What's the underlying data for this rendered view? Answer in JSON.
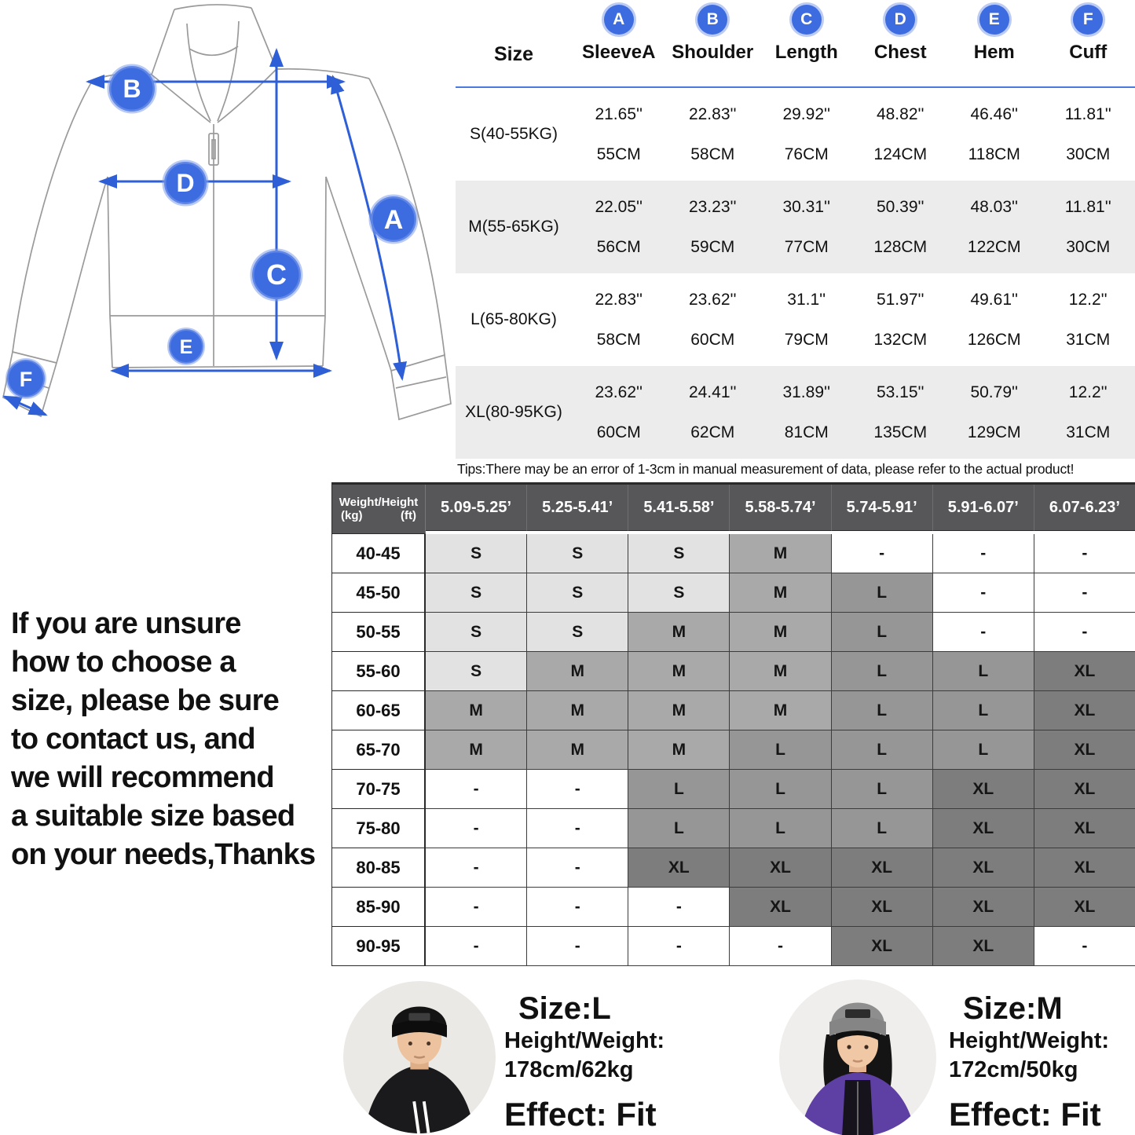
{
  "diagram": {
    "labels": {
      "a": "A",
      "b": "B",
      "c": "C",
      "d": "D",
      "e": "E",
      "f": "F"
    }
  },
  "size_table": {
    "size_header": "Size",
    "columns": [
      {
        "letter": "A",
        "label": "SleeveA"
      },
      {
        "letter": "B",
        "label": "Shoulder"
      },
      {
        "letter": "C",
        "label": "Length"
      },
      {
        "letter": "D",
        "label": "Chest"
      },
      {
        "letter": "E",
        "label": "Hem"
      },
      {
        "letter": "F",
        "label": "Cuff"
      }
    ],
    "rows": [
      {
        "size": "S(40-55KG)",
        "inch": [
          "21.65''",
          "22.83''",
          "29.92''",
          "48.82''",
          "46.46''",
          "11.81''"
        ],
        "cm": [
          "55CM",
          "58CM",
          "76CM",
          "124CM",
          "118CM",
          "30CM"
        ]
      },
      {
        "size": "M(55-65KG)",
        "inch": [
          "22.05''",
          "23.23''",
          "30.31''",
          "50.39''",
          "48.03''",
          "11.81''"
        ],
        "cm": [
          "56CM",
          "59CM",
          "77CM",
          "128CM",
          "122CM",
          "30CM"
        ]
      },
      {
        "size": "L(65-80KG)",
        "inch": [
          "22.83''",
          "23.62''",
          "31.1''",
          "51.97''",
          "49.61''",
          "12.2''"
        ],
        "cm": [
          "58CM",
          "60CM",
          "79CM",
          "132CM",
          "126CM",
          "31CM"
        ]
      },
      {
        "size": "XL(80-95KG)",
        "inch": [
          "23.62''",
          "24.41''",
          "31.89''",
          "53.15''",
          "50.79''",
          "12.2''"
        ],
        "cm": [
          "60CM",
          "62CM",
          "81CM",
          "135CM",
          "129CM",
          "31CM"
        ]
      }
    ],
    "tips": "Tips:There may be an error of 1-3cm in manual measurement of data, please refer to the actual product!"
  },
  "fit_matrix": {
    "corner": {
      "line1": "Weight/Height",
      "kg": "(kg)",
      "ft": "(ft)"
    },
    "height_columns": [
      "5.09-5.25’",
      "5.25-5.41’",
      "5.41-5.58’",
      "5.58-5.74’",
      "5.74-5.91’",
      "5.91-6.07’",
      "6.07-6.23’"
    ],
    "rows": [
      {
        "weight": "40-45",
        "cells": [
          "S",
          "S",
          "S",
          "M",
          "-",
          "-",
          "-"
        ]
      },
      {
        "weight": "45-50",
        "cells": [
          "S",
          "S",
          "S",
          "M",
          "L",
          "-",
          "-"
        ]
      },
      {
        "weight": "50-55",
        "cells": [
          "S",
          "S",
          "M",
          "M",
          "L",
          "-",
          "-"
        ]
      },
      {
        "weight": "55-60",
        "cells": [
          "S",
          "M",
          "M",
          "M",
          "L",
          "L",
          "XL"
        ]
      },
      {
        "weight": "60-65",
        "cells": [
          "M",
          "M",
          "M",
          "M",
          "L",
          "L",
          "XL"
        ]
      },
      {
        "weight": "65-70",
        "cells": [
          "M",
          "M",
          "M",
          "L",
          "L",
          "L",
          "XL"
        ]
      },
      {
        "weight": "70-75",
        "cells": [
          "-",
          "-",
          "L",
          "L",
          "L",
          "XL",
          "XL"
        ]
      },
      {
        "weight": "75-80",
        "cells": [
          "-",
          "-",
          "L",
          "L",
          "L",
          "XL",
          "XL"
        ]
      },
      {
        "weight": "80-85",
        "cells": [
          "-",
          "-",
          "XL",
          "XL",
          "XL",
          "XL",
          "XL"
        ]
      },
      {
        "weight": "85-90",
        "cells": [
          "-",
          "-",
          "-",
          "XL",
          "XL",
          "XL",
          "XL"
        ]
      },
      {
        "weight": "90-95",
        "cells": [
          "-",
          "-",
          "-",
          "-",
          "XL",
          "XL",
          "-"
        ]
      }
    ]
  },
  "advice": "If you are unsure\nhow to choose a\nsize, please be sure\nto contact us, and\nwe will recommend\na suitable size based\non your needs,Thanks",
  "models": [
    {
      "size": "Size:L",
      "hw_label": "Height/Weight:",
      "hw_value": "178cm/62kg",
      "effect": "Effect: Fit"
    },
    {
      "size": "Size:M",
      "hw_label": "Height/Weight:",
      "hw_value": "172cm/50kg",
      "effect": "Effect: Fit"
    }
  ],
  "colors": {
    "accent_blue": "#3d6be0",
    "arrow_blue": "#2f5fd6",
    "header_gray": "#57575a",
    "cell_s": "#e2e2e2",
    "cell_m": "#a9a9a9",
    "cell_l": "#969696",
    "cell_xl": "#7d7d7d",
    "stripe_gray": "#ececec"
  }
}
